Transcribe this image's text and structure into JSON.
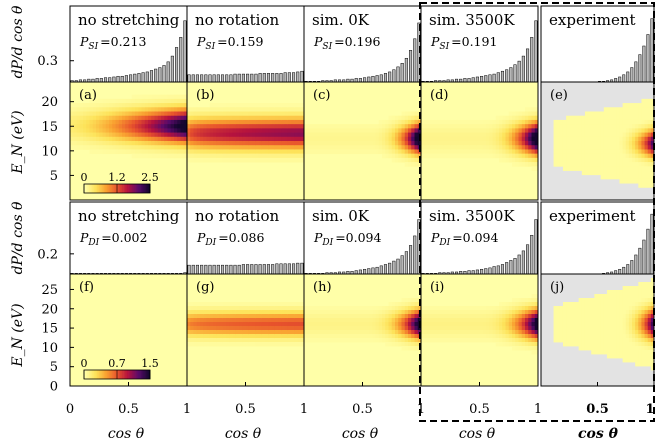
{
  "chart_data": {
    "type": "heatmap",
    "description_free": true,
    "x_axis": {
      "label": "cos θ",
      "range": [
        0,
        1
      ],
      "ticks": [
        "0",
        "0.5",
        "1"
      ],
      "last_column_ticks": [
        "0.5",
        "1"
      ]
    },
    "hist_ylabel": "dP/d cos θ",
    "map_ylabel": "E_N (eV)",
    "colormap": [
      "#ffffa8",
      "#fde35a",
      "#f9a030",
      "#e8542c",
      "#b5123e",
      "#5a0a6a",
      "#14062e"
    ],
    "background_color": "#e3e3e3",
    "rows": [
      {
        "hist_ytick": "0.3",
        "prob_symbol": "SI",
        "map_yticks": [
          "20",
          "15",
          "10",
          "5"
        ],
        "map_yrange": [
          0,
          24
        ],
        "colorbar_ticks": [
          "0",
          "1.2",
          "2.5"
        ],
        "panels": [
          {
            "id": "a",
            "title": "no stretching",
            "prob_label": "P",
            "prob_value": "=0.213",
            "hist": [
              0.02,
              0.02,
              0.03,
              0.03,
              0.04,
              0.04,
              0.05,
              0.05,
              0.06,
              0.06,
              0.07,
              0.08,
              0.08,
              0.09,
              0.1,
              0.11,
              0.12,
              0.13,
              0.14,
              0.16,
              0.18,
              0.2,
              0.23,
              0.28,
              0.36,
              0.48,
              0.62,
              0.85
            ],
            "map": {
              "center": 15,
              "spread": 3.2,
              "xmin": 0.0,
              "xpow": 1.5,
              "peak": 1.0,
              "tail": 0.35
            }
          },
          {
            "id": "b",
            "title": "no rotation",
            "prob_label": "P",
            "prob_value": "=0.159",
            "hist": [
              0.1,
              0.1,
              0.1,
              0.1,
              0.1,
              0.1,
              0.1,
              0.1,
              0.1,
              0.1,
              0.1,
              0.11,
              0.11,
              0.11,
              0.11,
              0.11,
              0.11,
              0.12,
              0.12,
              0.12,
              0.12,
              0.12,
              0.12,
              0.13,
              0.13,
              0.13,
              0.14,
              0.15
            ],
            "map": {
              "center": 13.5,
              "spread": 3.0,
              "xmin": 0.0,
              "xpow": 0.2,
              "peak": 0.45,
              "tail": 0.85
            }
          },
          {
            "id": "c",
            "title": "sim. 0K",
            "prob_label": "P",
            "prob_value": "=0.196",
            "hist": [
              0.01,
              0.01,
              0.01,
              0.01,
              0.02,
              0.02,
              0.02,
              0.03,
              0.03,
              0.03,
              0.04,
              0.04,
              0.05,
              0.05,
              0.06,
              0.07,
              0.08,
              0.09,
              0.1,
              0.12,
              0.14,
              0.17,
              0.21,
              0.26,
              0.33,
              0.44,
              0.6,
              0.82
            ],
            "map": {
              "center": 12.5,
              "spread": 2.8,
              "xmin": 0.55,
              "xpow": 3.0,
              "peak": 1.35,
              "tail": 0.15
            }
          },
          {
            "id": "d",
            "title": "sim. 3500K",
            "prob_label": "P",
            "prob_value": "=0.191",
            "hist": [
              0.01,
              0.01,
              0.01,
              0.02,
              0.02,
              0.02,
              0.03,
              0.03,
              0.04,
              0.04,
              0.05,
              0.05,
              0.06,
              0.07,
              0.08,
              0.09,
              0.1,
              0.11,
              0.13,
              0.15,
              0.17,
              0.2,
              0.24,
              0.29,
              0.36,
              0.46,
              0.62,
              0.85
            ],
            "map": {
              "center": 12.5,
              "spread": 3.0,
              "xmin": 0.5,
              "xpow": 2.8,
              "peak": 1.25,
              "tail": 0.18
            }
          },
          {
            "id": "e",
            "title": "experiment",
            "prob_label": "",
            "prob_value": "",
            "hist": [
              0,
              0,
              0,
              0,
              0,
              0,
              0,
              0,
              0,
              0,
              0,
              0,
              0,
              0,
              0.01,
              0.01,
              0.02,
              0.03,
              0.05,
              0.07,
              0.1,
              0.14,
              0.2,
              0.28,
              0.38,
              0.5,
              0.66,
              0.88
            ],
            "map": {
              "center": 11.5,
              "spread": 2.6,
              "xmin": 0.55,
              "xpow": 3.2,
              "peak": 0.95,
              "tail": 0.0,
              "experiment": true,
              "wedge_lo": 0.15,
              "wedge_hi": 0.55
            }
          }
        ]
      },
      {
        "hist_ytick": "0.2",
        "prob_symbol": "DI",
        "map_yticks": [
          "25",
          "20",
          "15",
          "10",
          "5",
          "0"
        ],
        "map_yrange": [
          0,
          29
        ],
        "colorbar_ticks": [
          "0",
          "0.7",
          "1.5"
        ],
        "panels": [
          {
            "id": "f",
            "title": "no stretching",
            "prob_label": "P",
            "prob_value": "=0.002",
            "hist": [
              0.01,
              0.01,
              0.01,
              0.01,
              0.01,
              0.01,
              0.01,
              0.01,
              0.01,
              0.01,
              0.01,
              0.01,
              0.01,
              0.01,
              0.01,
              0.01,
              0.01,
              0.01,
              0.01,
              0.01,
              0.01,
              0.01,
              0.01,
              0.01,
              0.01,
              0.01,
              0.01,
              0.02
            ],
            "map": {
              "center": 16,
              "spread": 3.0,
              "xmin": 0.0,
              "xpow": 1.0,
              "peak": 0.0,
              "tail": 0.0
            }
          },
          {
            "id": "g",
            "title": "no rotation",
            "prob_label": "P",
            "prob_value": "=0.086",
            "hist": [
              0.13,
              0.13,
              0.13,
              0.13,
              0.13,
              0.13,
              0.13,
              0.13,
              0.13,
              0.13,
              0.13,
              0.13,
              0.13,
              0.14,
              0.14,
              0.14,
              0.14,
              0.14,
              0.14,
              0.14,
              0.14,
              0.15,
              0.15,
              0.15,
              0.15,
              0.15,
              0.16,
              0.16
            ],
            "map": {
              "center": 16,
              "spread": 3.0,
              "xmin": 0.0,
              "xpow": 0.2,
              "peak": 0.22,
              "tail": 0.85
            }
          },
          {
            "id": "h",
            "title": "sim. 0K",
            "prob_label": "P",
            "prob_value": "=0.094",
            "hist": [
              0.01,
              0.01,
              0.01,
              0.01,
              0.01,
              0.02,
              0.02,
              0.02,
              0.03,
              0.03,
              0.04,
              0.04,
              0.05,
              0.06,
              0.07,
              0.08,
              0.09,
              0.1,
              0.12,
              0.14,
              0.16,
              0.19,
              0.22,
              0.27,
              0.33,
              0.42,
              0.56,
              0.8
            ],
            "map": {
              "center": 16,
              "spread": 3.4,
              "xmin": 0.5,
              "xpow": 3.0,
              "peak": 1.15,
              "tail": 0.2
            }
          },
          {
            "id": "i",
            "title": "sim. 3500K",
            "prob_label": "P",
            "prob_value": "=0.094",
            "hist": [
              0.01,
              0.01,
              0.01,
              0.01,
              0.02,
              0.02,
              0.02,
              0.03,
              0.03,
              0.04,
              0.04,
              0.05,
              0.05,
              0.06,
              0.07,
              0.08,
              0.09,
              0.11,
              0.12,
              0.14,
              0.17,
              0.2,
              0.23,
              0.28,
              0.34,
              0.43,
              0.57,
              0.8
            ],
            "map": {
              "center": 16,
              "spread": 3.6,
              "xmin": 0.5,
              "xpow": 2.8,
              "peak": 1.1,
              "tail": 0.22
            }
          },
          {
            "id": "j",
            "title": "experiment",
            "prob_label": "",
            "prob_value": "",
            "hist": [
              0,
              0,
              0,
              0,
              0,
              0,
              0,
              0,
              0,
              0,
              0,
              0,
              0,
              0,
              0,
              0.01,
              0.02,
              0.03,
              0.05,
              0.07,
              0.1,
              0.14,
              0.2,
              0.28,
              0.38,
              0.5,
              0.66,
              0.88
            ],
            "map": {
              "center": 16,
              "spread": 3.8,
              "xmin": 0.6,
              "xpow": 3.2,
              "peak": 1.0,
              "tail": 0.0,
              "experiment": true,
              "wedge_lo": 0.1,
              "wedge_hi": 0.6
            }
          }
        ]
      }
    ]
  }
}
